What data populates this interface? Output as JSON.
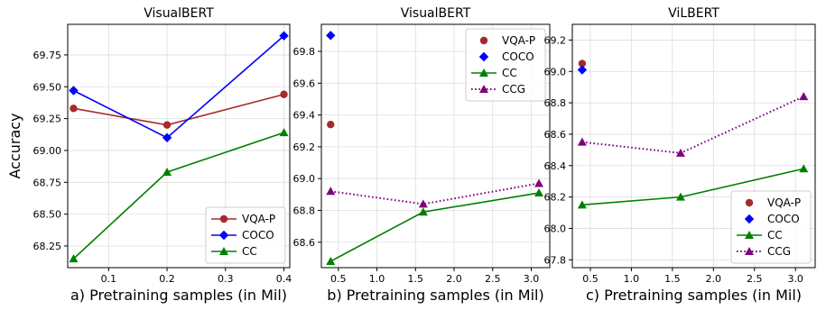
{
  "ylabel": "Accuracy",
  "chart_data": [
    {
      "type": "line",
      "title": "VisualBERT",
      "xlabel": "a) Pretraining samples (in Mil)",
      "xlim": [
        0.03,
        0.41
      ],
      "ylim": [
        68.08,
        69.99
      ],
      "xticks": [
        "0.1",
        "0.2",
        "0.3",
        "0.4"
      ],
      "xtick_values": [
        0.1,
        0.2,
        0.3,
        0.4
      ],
      "yticks": [
        "68.25",
        "68.50",
        "68.75",
        "69.00",
        "69.25",
        "69.50",
        "69.75"
      ],
      "ytick_values": [
        68.25,
        68.5,
        68.75,
        69.0,
        69.25,
        69.5,
        69.75
      ],
      "legend_position": "bottom-right",
      "grid": true,
      "series": [
        {
          "name": "VQA-P",
          "color": "#a52a2a",
          "marker": "circle",
          "style": "solid",
          "x": [
            0.04,
            0.2,
            0.4
          ],
          "y": [
            69.33,
            69.2,
            69.44
          ]
        },
        {
          "name": "COCO",
          "color": "#0000ff",
          "marker": "diamond",
          "style": "solid",
          "x": [
            0.04,
            0.2,
            0.4
          ],
          "y": [
            69.47,
            69.1,
            69.9
          ]
        },
        {
          "name": "CC",
          "color": "#008000",
          "marker": "triangle",
          "style": "solid",
          "x": [
            0.04,
            0.2,
            0.4
          ],
          "y": [
            68.15,
            68.83,
            69.14
          ]
        }
      ]
    },
    {
      "type": "line",
      "title": "VisualBERT",
      "xlabel": "b) Pretraining samples (in Mil)",
      "xlim": [
        0.28,
        3.24
      ],
      "ylim": [
        68.44,
        69.97
      ],
      "xticks": [
        "0.5",
        "1.0",
        "1.5",
        "2.0",
        "2.5",
        "3.0"
      ],
      "xtick_values": [
        0.5,
        1.0,
        1.5,
        2.0,
        2.5,
        3.0
      ],
      "yticks": [
        "68.6",
        "68.8",
        "69.0",
        "69.2",
        "69.4",
        "69.6",
        "69.8"
      ],
      "ytick_values": [
        68.6,
        68.8,
        69.0,
        69.2,
        69.4,
        69.6,
        69.8
      ],
      "legend_position": "top-right",
      "grid": true,
      "series": [
        {
          "name": "VQA-P",
          "color": "#a52a2a",
          "marker": "circle",
          "style": "none",
          "x": [
            0.4
          ],
          "y": [
            69.34
          ]
        },
        {
          "name": "COCO",
          "color": "#0000ff",
          "marker": "diamond",
          "style": "none",
          "x": [
            0.4
          ],
          "y": [
            69.9
          ]
        },
        {
          "name": "CC",
          "color": "#008000",
          "marker": "triangle",
          "style": "solid",
          "x": [
            0.4,
            1.6,
            3.1
          ],
          "y": [
            68.48,
            68.79,
            68.91
          ]
        },
        {
          "name": "CCG",
          "color": "#800080",
          "marker": "triangle",
          "style": "dotted",
          "x": [
            0.4,
            1.6,
            3.1
          ],
          "y": [
            68.92,
            68.84,
            68.97
          ]
        }
      ]
    },
    {
      "type": "line",
      "title": "ViLBERT",
      "xlabel": "c) Pretraining samples (in Mil)",
      "xlim": [
        0.28,
        3.24
      ],
      "ylim": [
        67.75,
        69.3
      ],
      "xticks": [
        "0.5",
        "1.0",
        "1.5",
        "2.0",
        "2.5",
        "3.0"
      ],
      "xtick_values": [
        0.5,
        1.0,
        1.5,
        2.0,
        2.5,
        3.0
      ],
      "yticks": [
        "67.8",
        "68.0",
        "68.2",
        "68.4",
        "68.6",
        "68.8",
        "69.0",
        "69.2"
      ],
      "ytick_values": [
        67.8,
        68.0,
        68.2,
        68.4,
        68.6,
        68.8,
        69.0,
        69.2
      ],
      "legend_position": "bottom-right",
      "grid": true,
      "series": [
        {
          "name": "VQA-P",
          "color": "#a52a2a",
          "marker": "circle",
          "style": "none",
          "x": [
            0.4
          ],
          "y": [
            69.05
          ]
        },
        {
          "name": "COCO",
          "color": "#0000ff",
          "marker": "diamond",
          "style": "none",
          "x": [
            0.4
          ],
          "y": [
            69.01
          ]
        },
        {
          "name": "CC",
          "color": "#008000",
          "marker": "triangle",
          "style": "solid",
          "x": [
            0.4,
            1.6,
            3.1
          ],
          "y": [
            68.15,
            68.2,
            68.38
          ]
        },
        {
          "name": "CCG",
          "color": "#800080",
          "marker": "triangle",
          "style": "dotted",
          "x": [
            0.4,
            1.6,
            3.1
          ],
          "y": [
            68.55,
            68.48,
            68.84
          ]
        }
      ]
    }
  ]
}
